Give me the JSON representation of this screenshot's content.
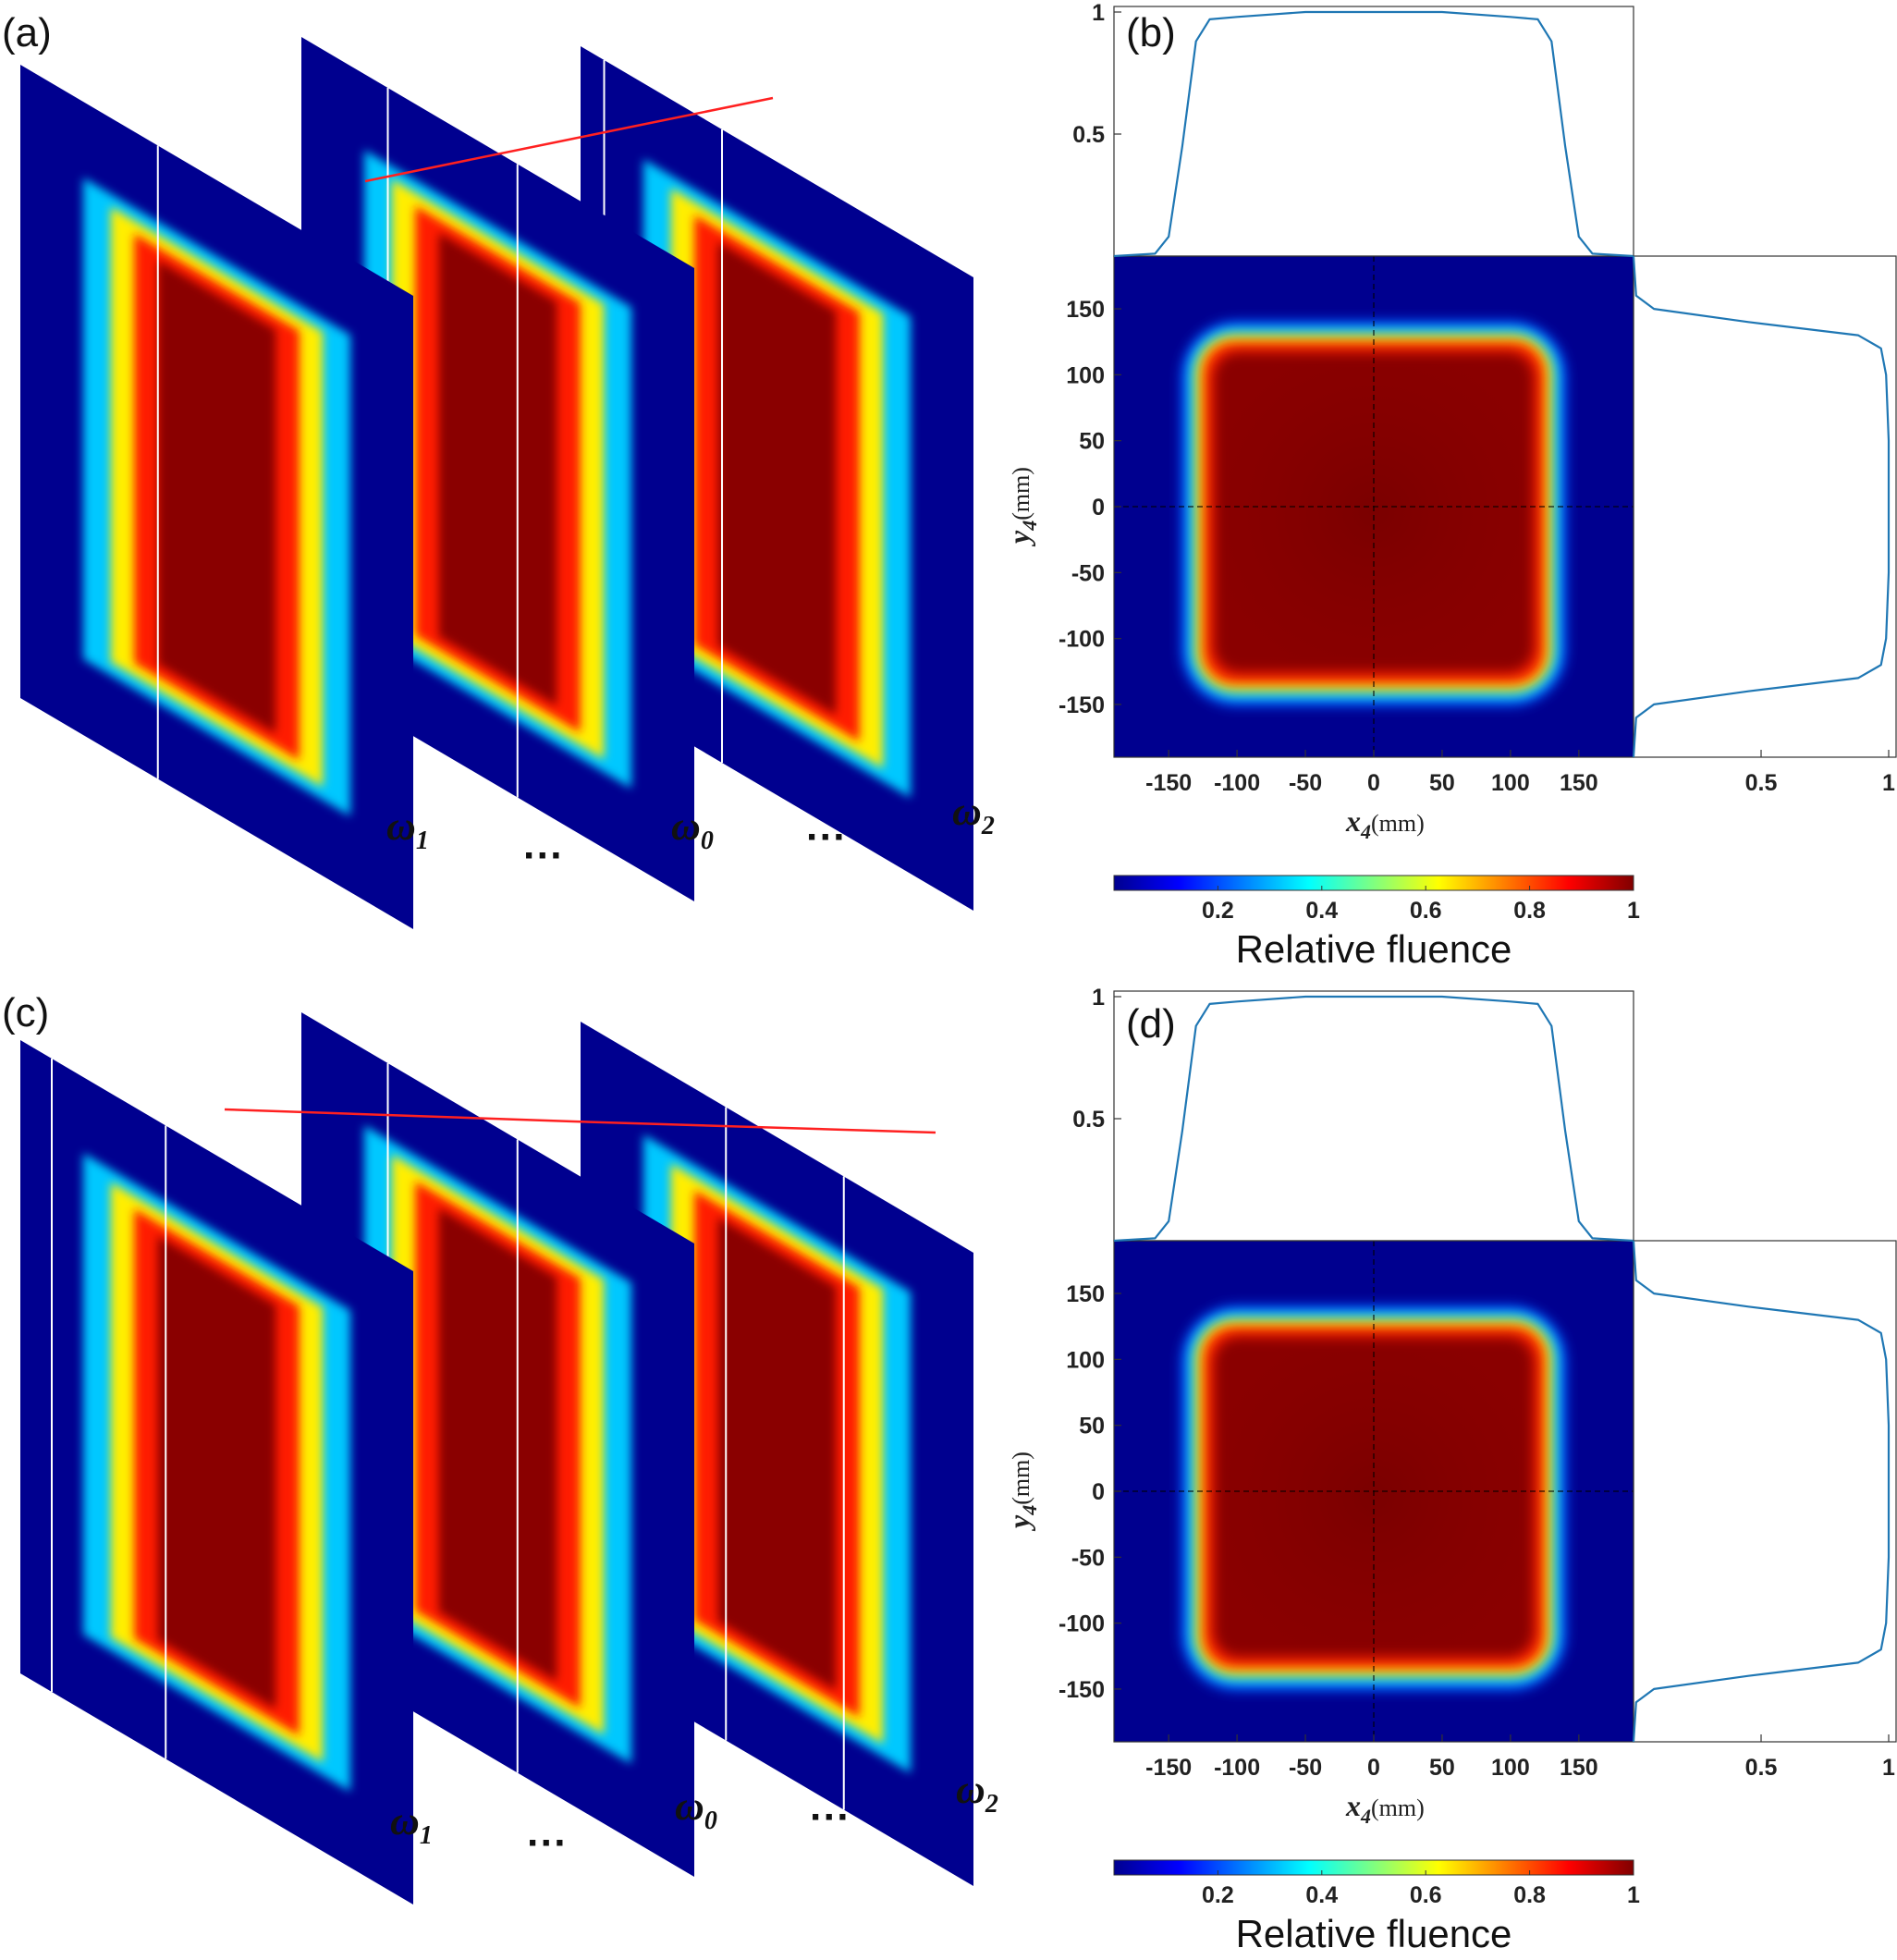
{
  "figure": {
    "panels": {
      "a": {
        "label": "(a)"
      },
      "b": {
        "label": "(b)"
      },
      "c": {
        "label": "(c)"
      },
      "d": {
        "label": "(d)"
      }
    },
    "omega_labels": [
      {
        "symbol": "ω",
        "sub": "1"
      },
      {
        "symbol": "ω",
        "sub": "0"
      },
      {
        "symbol": "ω",
        "sub": "2"
      }
    ],
    "ellipsis": "···",
    "colors": {
      "line": "#1f77b4",
      "cut_line": "#ff2020",
      "marker_line": "#ffffff",
      "background_field": "#00008f"
    }
  },
  "chart_data": [
    {
      "panel": "b",
      "type": "heatmap",
      "colormap": "jet",
      "xlabel": "x",
      "xlabel_sub": "4",
      "xunit": "(mm)",
      "ylabel": "y",
      "ylabel_sub": "4",
      "yunit": "(mm)",
      "xlim": [
        -190,
        190
      ],
      "ylim": [
        -190,
        190
      ],
      "xticks": [
        -150,
        -100,
        -50,
        0,
        50,
        100,
        150
      ],
      "yticks": [
        150,
        100,
        50,
        0,
        -50,
        -100,
        -150
      ],
      "flat_top_half_width_mm": 130,
      "edge_width_mm": 14,
      "crosshair": [
        0,
        0
      ],
      "top_profile": {
        "ylim": [
          0.0,
          1.0
        ],
        "yticks": [
          0.5,
          1
        ],
        "x": [
          -190,
          -160,
          -150,
          -140,
          -130,
          -120,
          -100,
          -50,
          0,
          50,
          100,
          120,
          130,
          140,
          150,
          160,
          190
        ],
        "y": [
          0.0,
          0.01,
          0.08,
          0.45,
          0.88,
          0.97,
          0.98,
          1.0,
          1.0,
          1.0,
          0.98,
          0.97,
          0.88,
          0.45,
          0.08,
          0.01,
          0.0
        ]
      },
      "side_profile": {
        "xlim": [
          0.0,
          1.0
        ],
        "xticks": [
          0.5,
          1
        ],
        "y": [
          190,
          160,
          150,
          140,
          130,
          120,
          100,
          50,
          0,
          -50,
          -100,
          -120,
          -130,
          -140,
          -150,
          -160,
          -190
        ],
        "value": [
          0.0,
          0.01,
          0.08,
          0.45,
          0.88,
          0.97,
          0.99,
          1.0,
          1.0,
          1.0,
          0.99,
          0.97,
          0.88,
          0.45,
          0.08,
          0.01,
          0.0
        ]
      },
      "colorbar": {
        "label": "Relative fluence",
        "ticks": [
          "0.2",
          "0.4",
          "0.6",
          "0.8",
          "1"
        ],
        "values": [
          0.2,
          0.4,
          0.6,
          0.8,
          1.0
        ],
        "range": [
          0.0,
          1.0
        ]
      }
    },
    {
      "panel": "d",
      "type": "heatmap",
      "colormap": "jet",
      "xlabel": "x",
      "xlabel_sub": "4",
      "xunit": "(mm)",
      "ylabel": "y",
      "ylabel_sub": "4",
      "yunit": "(mm)",
      "xlim": [
        -190,
        190
      ],
      "ylim": [
        -190,
        190
      ],
      "xticks": [
        -150,
        -100,
        -50,
        0,
        50,
        100,
        150
      ],
      "yticks": [
        150,
        100,
        50,
        0,
        -50,
        -100,
        -150
      ],
      "flat_top_half_width_mm": 130,
      "edge_width_mm": 14,
      "crosshair": [
        0,
        0
      ],
      "top_profile": {
        "ylim": [
          0.0,
          1.0
        ],
        "yticks": [
          0.5,
          1
        ],
        "x": [
          -190,
          -160,
          -150,
          -140,
          -130,
          -120,
          -100,
          -50,
          0,
          50,
          100,
          120,
          130,
          140,
          150,
          160,
          190
        ],
        "y": [
          0.0,
          0.01,
          0.08,
          0.45,
          0.88,
          0.97,
          0.98,
          1.0,
          1.0,
          1.0,
          0.98,
          0.97,
          0.88,
          0.45,
          0.08,
          0.01,
          0.0
        ]
      },
      "side_profile": {
        "xlim": [
          0.0,
          1.0
        ],
        "xticks": [
          0.5,
          1
        ],
        "y": [
          190,
          160,
          150,
          140,
          130,
          120,
          100,
          50,
          0,
          -50,
          -100,
          -120,
          -130,
          -140,
          -150,
          -160,
          -190
        ],
        "value": [
          0.0,
          0.01,
          0.08,
          0.45,
          0.88,
          0.97,
          0.99,
          1.0,
          1.0,
          1.0,
          0.99,
          0.97,
          0.88,
          0.45,
          0.08,
          0.01,
          0.0
        ]
      },
      "colorbar": {
        "label": "Relative fluence",
        "ticks": [
          "0.2",
          "0.4",
          "0.6",
          "0.8",
          "1"
        ],
        "values": [
          0.2,
          0.4,
          0.6,
          0.8,
          1.0
        ],
        "range": [
          0.0,
          1.0
        ]
      }
    }
  ]
}
